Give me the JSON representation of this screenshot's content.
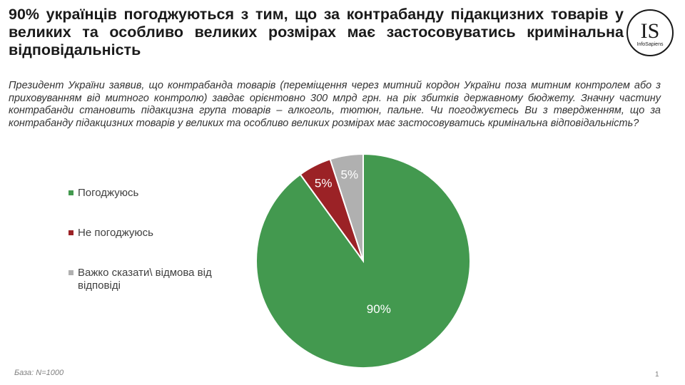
{
  "title": "90% українців погоджуються з тим, що за контрабанду підакцизних товарів у великих та особливо великих розмірах має застосовуватись кримінальна відповідальність",
  "question": "Президент України заявив, що контрабанда товарів (переміщення через митний кордон України поза митним контролем або з приховуванням від митного контролю) завдає орієнтовно 300 млрд грн. на рік збитків державному бюджету. Значну частину контрабанди становить підакцизна група товарів – алкоголь, тютюн, пальне. Чи погоджуєтесь Ви з твердженням, що за контрабанду підакцизних товарів у великих та особливо великих розмірах має застосовуватись кримінальна відповідальність?",
  "logo": {
    "text": "IS",
    "subtext": "InfoSapiens"
  },
  "base": "База:  N=1000",
  "page_number": "1",
  "chart_data": {
    "type": "pie",
    "title": "",
    "legend_position": "left",
    "slices": [
      {
        "label": "Погоджуюсь",
        "value": 90,
        "data_label": "90%",
        "color": "#43994f",
        "label_color": "#ffffff"
      },
      {
        "label": "Не погоджуюсь",
        "value": 5,
        "data_label": "5%",
        "color": "#9b2226",
        "label_color": "#ffffff"
      },
      {
        "label": "Важко сказати\\ відмова від відповіді",
        "value": 5,
        "data_label": "5%",
        "color": "#b0b0b0",
        "label_color": "#ffffff"
      }
    ]
  }
}
